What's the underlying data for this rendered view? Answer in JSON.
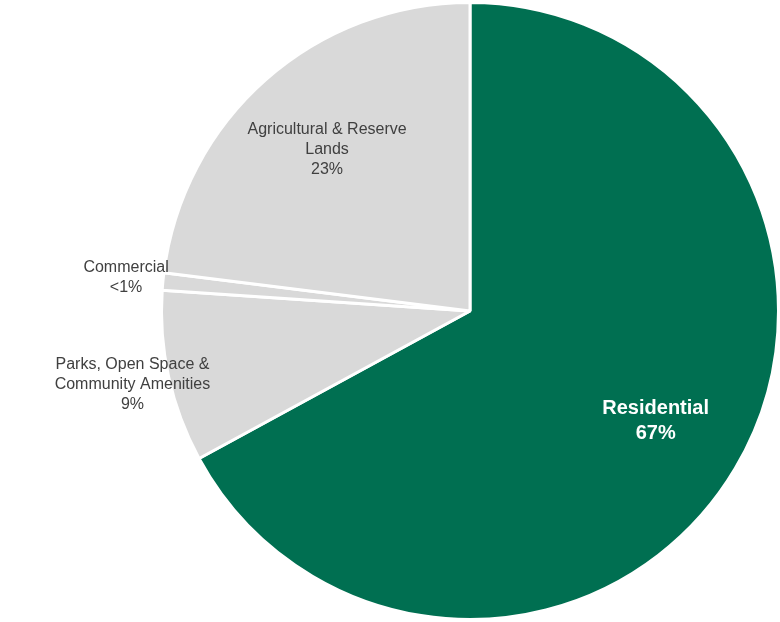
{
  "chart_data": {
    "type": "pie",
    "categories": [
      "Residential",
      "Parks, Open Space & Community Amenities",
      "Commercial",
      "Agricultural & Reserve Lands"
    ],
    "values": [
      67,
      9,
      0.9,
      23
    ],
    "value_labels": [
      "67%",
      "9%",
      "<1%",
      "23%"
    ],
    "colors": [
      "#006f51",
      "#d9d9d9",
      "#d9d9d9",
      "#d9d9d9"
    ],
    "data_labels": true
  }
}
